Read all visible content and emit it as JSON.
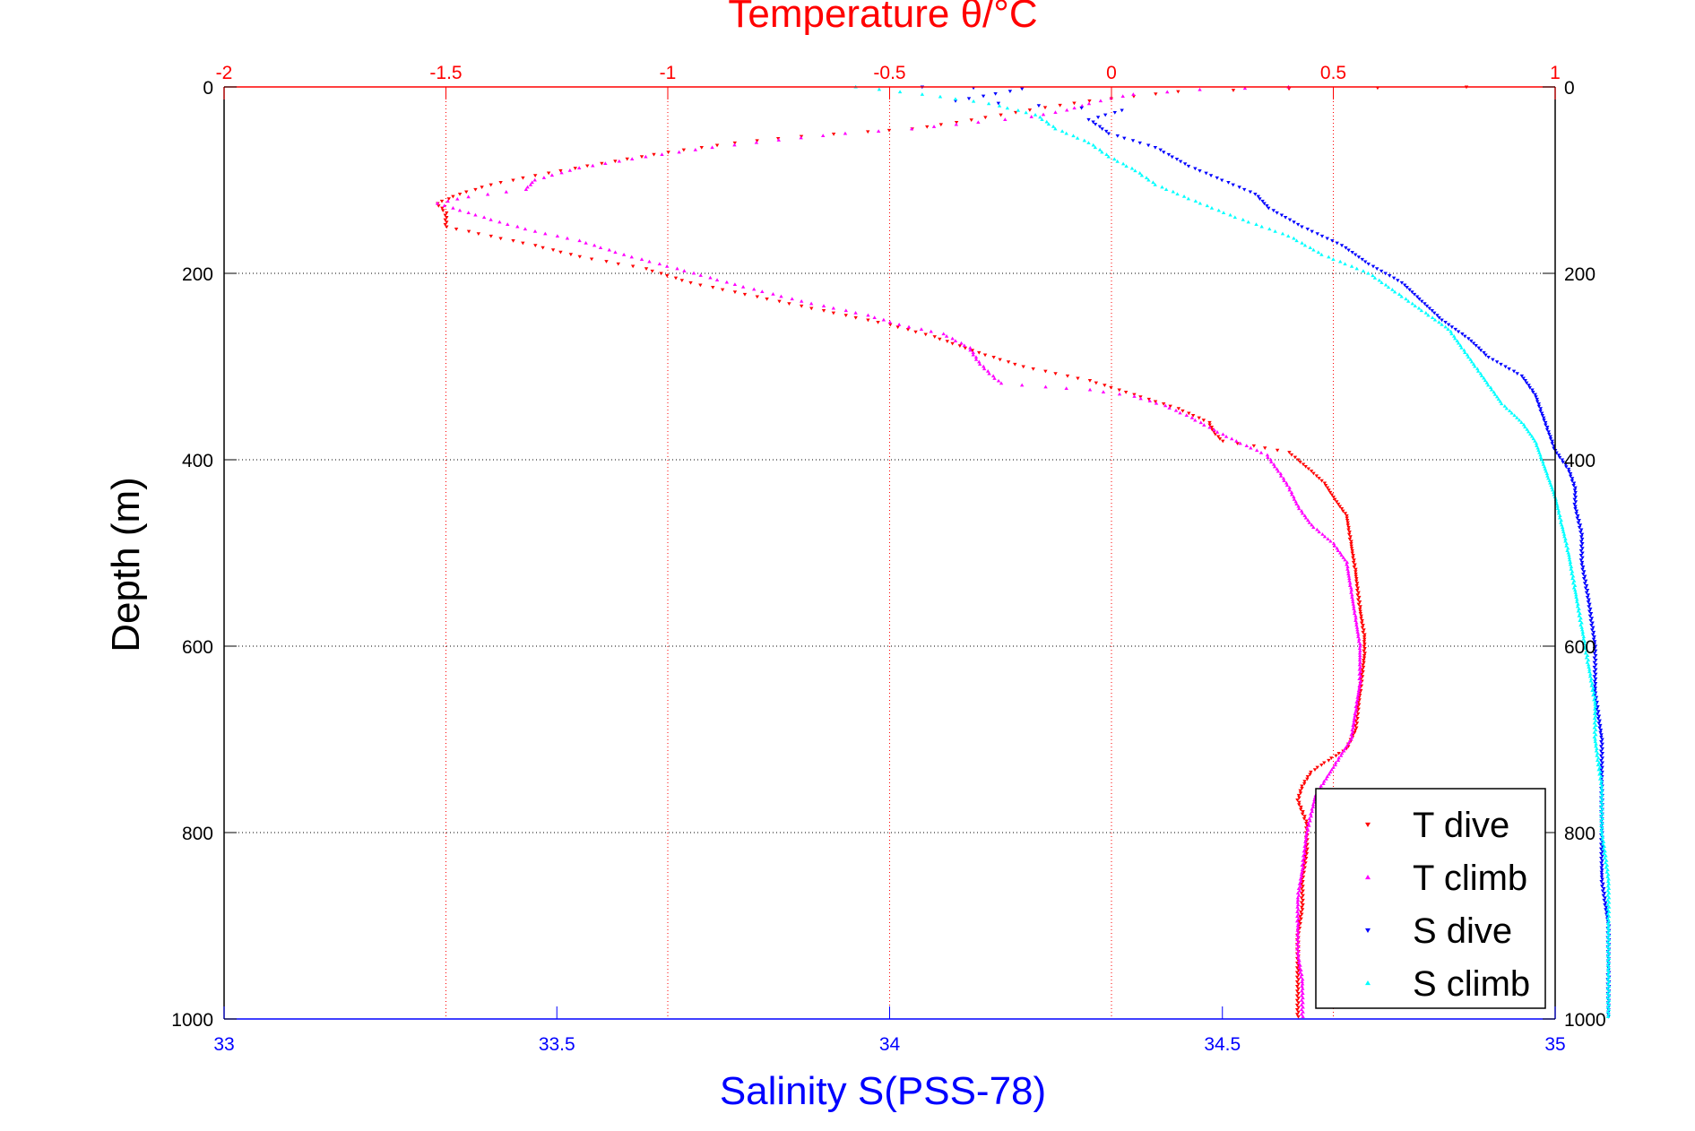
{
  "chart_data": {
    "type": "scatter",
    "title": "",
    "top_axis": {
      "label": "Temperature θ/°C",
      "range": [
        -2,
        1
      ],
      "ticks": [
        -2,
        -1.5,
        -1,
        -0.5,
        0,
        0.5,
        1
      ],
      "tick_labels": [
        "-2",
        "-1.5",
        "-1",
        "-0.5",
        "0",
        "0.5",
        "1"
      ],
      "color": "#ff0000"
    },
    "bottom_axis": {
      "label": "Salinity S(PSS-78)",
      "range": [
        33,
        35
      ],
      "ticks": [
        33,
        33.5,
        34,
        34.5,
        35
      ],
      "tick_labels": [
        "33",
        "33.5",
        "34",
        "34.5",
        "35"
      ],
      "color": "#0000ff"
    },
    "y_axis": {
      "label": "Depth (m)",
      "range": [
        0,
        1000
      ],
      "reversed": true,
      "ticks": [
        0,
        200,
        400,
        600,
        800,
        1000
      ],
      "tick_labels": [
        "0",
        "200",
        "400",
        "600",
        "800",
        "1000"
      ]
    },
    "grid": true,
    "legend_position": "bottom-right",
    "series": [
      {
        "name": "T dive",
        "axis": "temperature",
        "color": "#ff0000",
        "marker": "triangle-down",
        "points": [
          [
            0.8,
            0
          ],
          [
            0.4,
            2
          ],
          [
            0.15,
            5
          ],
          [
            0.05,
            10
          ],
          [
            -0.05,
            15
          ],
          [
            -0.15,
            22
          ],
          [
            -0.25,
            30
          ],
          [
            -0.35,
            38
          ],
          [
            -0.45,
            45
          ],
          [
            -0.55,
            48
          ],
          [
            -0.7,
            53
          ],
          [
            -0.85,
            60
          ],
          [
            -1.0,
            70
          ],
          [
            -1.15,
            82
          ],
          [
            -1.3,
            95
          ],
          [
            -1.4,
            105
          ],
          [
            -1.47,
            115
          ],
          [
            -1.52,
            125
          ],
          [
            -1.5,
            135
          ],
          [
            -1.5,
            150
          ],
          [
            -1.4,
            160
          ],
          [
            -1.3,
            170
          ],
          [
            -1.2,
            182
          ],
          [
            -1.05,
            195
          ],
          [
            -0.95,
            210
          ],
          [
            -0.8,
            225
          ],
          [
            -0.65,
            240
          ],
          [
            -0.5,
            255
          ],
          [
            -0.4,
            268
          ],
          [
            -0.3,
            285
          ],
          [
            -0.2,
            300
          ],
          [
            -0.05,
            315
          ],
          [
            0.05,
            330
          ],
          [
            0.15,
            345
          ],
          [
            0.22,
            360
          ],
          [
            0.23,
            370
          ],
          [
            0.25,
            380
          ],
          [
            0.32,
            385
          ],
          [
            0.4,
            392
          ],
          [
            0.42,
            400
          ],
          [
            0.45,
            412
          ],
          [
            0.48,
            425
          ],
          [
            0.5,
            440
          ],
          [
            0.53,
            460
          ],
          [
            0.54,
            490
          ],
          [
            0.55,
            520
          ],
          [
            0.56,
            560
          ],
          [
            0.57,
            590
          ],
          [
            0.57,
            610
          ],
          [
            0.56,
            650
          ],
          [
            0.55,
            690
          ],
          [
            0.53,
            710
          ],
          [
            0.48,
            725
          ],
          [
            0.45,
            735
          ],
          [
            0.43,
            750
          ],
          [
            0.42,
            765
          ],
          [
            0.44,
            790
          ],
          [
            0.44,
            820
          ],
          [
            0.43,
            850
          ],
          [
            0.43,
            880
          ],
          [
            0.42,
            910
          ],
          [
            0.42,
            940
          ],
          [
            0.42,
            970
          ],
          [
            0.42,
            1000
          ]
        ]
      },
      {
        "name": "T climb",
        "axis": "temperature",
        "color": "#ff00ff",
        "marker": "triangle-up",
        "points": [
          [
            0.4,
            0
          ],
          [
            0.2,
            3
          ],
          [
            0.05,
            8
          ],
          [
            0.0,
            12
          ],
          [
            -0.05,
            18
          ],
          [
            -0.1,
            25
          ],
          [
            -0.18,
            32
          ],
          [
            -0.3,
            38
          ],
          [
            -0.45,
            45
          ],
          [
            -0.6,
            50
          ],
          [
            -0.75,
            57
          ],
          [
            -0.9,
            65
          ],
          [
            -1.05,
            75
          ],
          [
            -1.2,
            87
          ],
          [
            -1.3,
            100
          ],
          [
            -1.32,
            110
          ],
          [
            -1.45,
            118
          ],
          [
            -1.52,
            125
          ],
          [
            -1.45,
            135
          ],
          [
            -1.38,
            145
          ],
          [
            -1.3,
            155
          ],
          [
            -1.2,
            165
          ],
          [
            -1.1,
            180
          ],
          [
            -0.98,
            195
          ],
          [
            -0.85,
            212
          ],
          [
            -0.7,
            230
          ],
          [
            -0.55,
            245
          ],
          [
            -0.48,
            255
          ],
          [
            -0.38,
            265
          ],
          [
            -0.32,
            280
          ],
          [
            -0.3,
            295
          ],
          [
            -0.28,
            305
          ],
          [
            -0.25,
            318
          ],
          [
            -0.15,
            322
          ],
          [
            -0.05,
            325
          ],
          [
            0.05,
            332
          ],
          [
            0.12,
            342
          ],
          [
            0.18,
            355
          ],
          [
            0.23,
            368
          ],
          [
            0.28,
            380
          ],
          [
            0.35,
            395
          ],
          [
            0.38,
            415
          ],
          [
            0.4,
            430
          ],
          [
            0.42,
            450
          ],
          [
            0.45,
            470
          ],
          [
            0.5,
            490
          ],
          [
            0.53,
            510
          ],
          [
            0.54,
            540
          ],
          [
            0.55,
            570
          ],
          [
            0.56,
            600
          ],
          [
            0.56,
            640
          ],
          [
            0.55,
            670
          ],
          [
            0.54,
            700
          ],
          [
            0.5,
            730
          ],
          [
            0.46,
            760
          ],
          [
            0.44,
            800
          ],
          [
            0.43,
            840
          ],
          [
            0.42,
            870
          ],
          [
            0.42,
            900
          ],
          [
            0.42,
            930
          ],
          [
            0.43,
            960
          ],
          [
            0.43,
            1000
          ]
        ]
      },
      {
        "name": "S dive",
        "axis": "salinity",
        "color": "#0000ff",
        "marker": "triangle-down",
        "points": [
          [
            34.05,
            0
          ],
          [
            34.2,
            2
          ],
          [
            34.1,
            15
          ],
          [
            34.35,
            25
          ],
          [
            34.3,
            35
          ],
          [
            34.33,
            50
          ],
          [
            34.4,
            65
          ],
          [
            34.45,
            85
          ],
          [
            34.5,
            100
          ],
          [
            34.55,
            115
          ],
          [
            34.57,
            130
          ],
          [
            34.62,
            150
          ],
          [
            34.68,
            170
          ],
          [
            34.72,
            190
          ],
          [
            34.77,
            210
          ],
          [
            34.8,
            230
          ],
          [
            34.83,
            250
          ],
          [
            34.87,
            270
          ],
          [
            34.9,
            290
          ],
          [
            34.95,
            310
          ],
          [
            34.97,
            330
          ],
          [
            34.98,
            350
          ],
          [
            34.99,
            370
          ],
          [
            35.0,
            390
          ],
          [
            35.02,
            410
          ],
          [
            35.03,
            430
          ],
          [
            35.03,
            450
          ],
          [
            35.04,
            480
          ],
          [
            35.04,
            510
          ],
          [
            35.05,
            550
          ],
          [
            35.06,
            600
          ],
          [
            35.06,
            650
          ],
          [
            35.07,
            700
          ],
          [
            35.07,
            750
          ],
          [
            35.07,
            800
          ],
          [
            35.07,
            850
          ],
          [
            35.08,
            900
          ],
          [
            35.08,
            950
          ],
          [
            35.08,
            1000
          ]
        ]
      },
      {
        "name": "S climb",
        "axis": "salinity",
        "color": "#00ffff",
        "marker": "triangle-up",
        "points": [
          [
            33.95,
            0
          ],
          [
            34.05,
            8
          ],
          [
            34.15,
            18
          ],
          [
            34.22,
            30
          ],
          [
            34.25,
            45
          ],
          [
            34.3,
            60
          ],
          [
            34.33,
            75
          ],
          [
            34.37,
            90
          ],
          [
            34.4,
            105
          ],
          [
            34.45,
            120
          ],
          [
            34.52,
            140
          ],
          [
            34.6,
            160
          ],
          [
            34.65,
            180
          ],
          [
            34.72,
            200
          ],
          [
            34.76,
            220
          ],
          [
            34.8,
            240
          ],
          [
            34.84,
            260
          ],
          [
            34.86,
            280
          ],
          [
            34.88,
            300
          ],
          [
            34.9,
            320
          ],
          [
            34.92,
            340
          ],
          [
            34.95,
            360
          ],
          [
            34.97,
            380
          ],
          [
            34.98,
            400
          ],
          [
            34.99,
            420
          ],
          [
            35.0,
            440
          ],
          [
            35.01,
            470
          ],
          [
            35.02,
            500
          ],
          [
            35.03,
            540
          ],
          [
            35.04,
            580
          ],
          [
            35.05,
            620
          ],
          [
            35.06,
            660
          ],
          [
            35.06,
            700
          ],
          [
            35.07,
            750
          ],
          [
            35.07,
            800
          ],
          [
            35.08,
            850
          ],
          [
            35.08,
            900
          ],
          [
            35.08,
            950
          ],
          [
            35.08,
            1000
          ]
        ]
      }
    ]
  }
}
